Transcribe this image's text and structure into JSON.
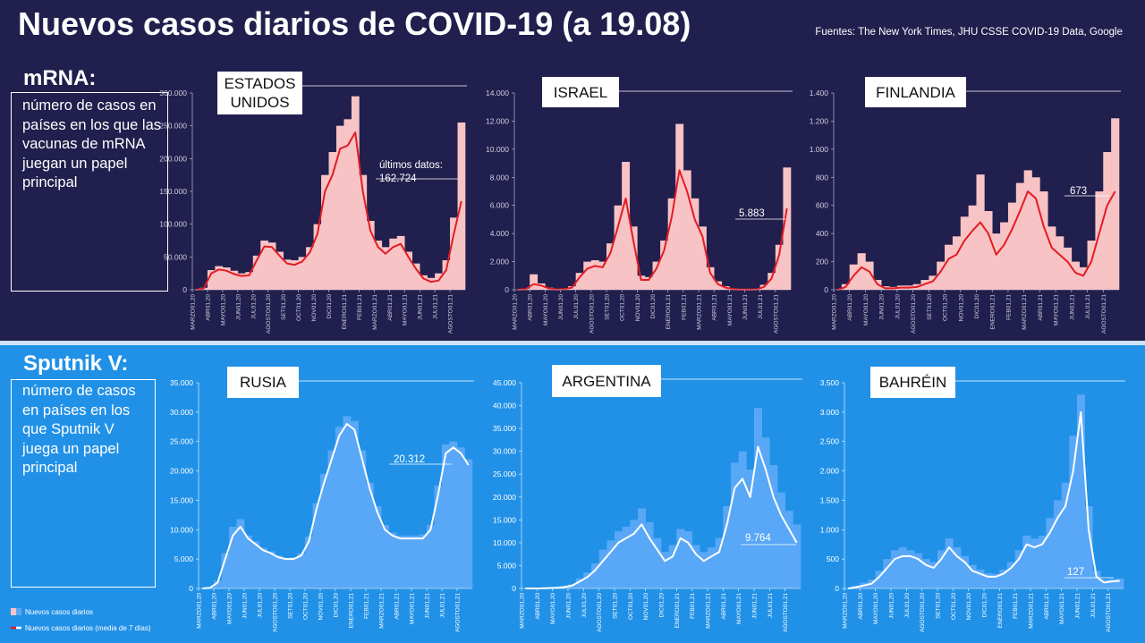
{
  "title": "Nuevos casos diarios de COVID-19 (a 19.08)",
  "source": "Fuentes: The New York Times, JHU CSSE COVID-19 Data, Google",
  "sections": [
    {
      "label": "mRNA:",
      "text": "número de casos en países en los que las vacunas de mRNA juegan un papel principal"
    },
    {
      "label": "Sputnik V:",
      "text": "número de casos en países en los que Sputnik V juega un papel principal"
    }
  ],
  "chart_data": [
    {
      "type": "bar_line",
      "title": "ESTADOS UNIDOS",
      "categories": [
        "MARZO01,20",
        null,
        "ABR01,20",
        null,
        "MAYO01,20",
        null,
        "JUN01,20",
        null,
        "JUL01,20",
        null,
        "AGOSTO01,20",
        null,
        "SET01,20",
        null,
        "OCT01,20",
        null,
        "NOV01,20",
        null,
        "DIC01,20",
        null,
        "ENERO01,21",
        null,
        "FEB01,21",
        null,
        "MARZO01,21",
        null,
        "ABR01,21",
        null,
        "MAYO01,21",
        null,
        "JUN01,21",
        null,
        "JUL01,21",
        null,
        "AGOSTO01,21",
        null
      ],
      "series": [
        {
          "name": "Nuevos casos diarios",
          "color": "#f8c3c5",
          "values": [
            0,
            3000,
            30000,
            36000,
            34000,
            29000,
            25000,
            27000,
            52000,
            75000,
            72000,
            58000,
            46000,
            45000,
            50000,
            65000,
            100000,
            175000,
            210000,
            250000,
            260000,
            295000,
            175000,
            105000,
            75000,
            65000,
            78000,
            82000,
            58000,
            40000,
            22000,
            18000,
            25000,
            45000,
            110000,
            255000
          ]
        },
        {
          "name": "Nuevos casos diarios (media de 7 días)",
          "color": "#e31b23",
          "values": [
            0,
            2000,
            25000,
            31000,
            29000,
            24000,
            21000,
            22000,
            45000,
            66000,
            65000,
            52000,
            40000,
            38000,
            43000,
            57000,
            85000,
            150000,
            175000,
            215000,
            220000,
            240000,
            150000,
            90000,
            65000,
            55000,
            65000,
            70000,
            50000,
            32000,
            17000,
            12000,
            14000,
            30000,
            85000,
            135000
          ]
        }
      ],
      "ylim": [
        0,
        300000
      ],
      "yticks": [
        0,
        {
          "value": 50000,
          "label": "50.000"
        },
        {
          "value": 100000,
          "label": "100.000"
        },
        {
          "value": 150000,
          "label": "150.000"
        },
        {
          "value": 200000,
          "label": "200.000"
        },
        {
          "value": 250000,
          "label": "250.000"
        },
        {
          "value": 300000,
          "label": "300.000"
        }
      ],
      "annotations": [
        "últimos datos:",
        "162.724"
      ]
    },
    {
      "type": "bar_line",
      "title": "ISRAEL",
      "categories": [
        "MARZO01,20",
        null,
        "ABR01,20",
        null,
        "MAYO01,20",
        null,
        "JUN01,20",
        null,
        "JUL01,20",
        null,
        "AGOSTO01,20",
        null,
        "SET01,20",
        null,
        "OCT01,20",
        null,
        "NOV01,20",
        null,
        "DIC01,20",
        null,
        "ENERO01,21",
        null,
        "FEB01,21",
        null,
        "MARZO01,21",
        null,
        "ABR01,21",
        null,
        "MAYO01,21",
        null,
        "JUN01,21",
        null,
        "JUL01,21",
        null,
        "AGOSTO01,21",
        null
      ],
      "series": [
        {
          "color": "#f8c3c5",
          "values": [
            0,
            80,
            1100,
            450,
            150,
            40,
            80,
            250,
            1200,
            2000,
            2100,
            2000,
            3300,
            6000,
            9100,
            4500,
            1000,
            900,
            2000,
            3500,
            6500,
            11800,
            8500,
            6500,
            4500,
            1600,
            600,
            250,
            80,
            40,
            30,
            60,
            350,
            1200,
            3200,
            8700
          ]
        },
        {
          "color": "#e31b23",
          "values": [
            0,
            50,
            400,
            300,
            100,
            20,
            50,
            150,
            900,
            1500,
            1700,
            1600,
            2600,
            4500,
            6500,
            3500,
            700,
            700,
            1500,
            2800,
            5200,
            8500,
            7000,
            5000,
            3800,
            1200,
            400,
            150,
            50,
            20,
            10,
            20,
            200,
            800,
            2500,
            5800
          ]
        }
      ],
      "ylim": [
        0,
        14000
      ],
      "yticks": [
        0,
        {
          "value": 2000,
          "label": "2.000"
        },
        {
          "value": 4000,
          "label": "4.000"
        },
        {
          "value": 6000,
          "label": "6.000"
        },
        {
          "value": 8000,
          "label": "8.000"
        },
        {
          "value": 10000,
          "label": "10.000"
        },
        {
          "value": 12000,
          "label": "12.000"
        },
        {
          "value": 14000,
          "label": "14.000"
        }
      ],
      "annotations": [
        "5.883"
      ]
    },
    {
      "type": "bar_line",
      "title": "FINLANDIA",
      "categories": [
        "MARZO01,20",
        null,
        "ABR01,20",
        null,
        "MAYO01,20",
        null,
        "JUN01,20",
        null,
        "JUL01,20",
        null,
        "AGOSTO01,20",
        null,
        "SET01,20",
        null,
        "OCT01,20",
        null,
        "NOV01,20",
        null,
        "DIC01,20",
        null,
        "ENERO01,21",
        null,
        "FEB01,21",
        null,
        "MARZO01,21",
        null,
        "ABR01,21",
        null,
        "MAYO01,21",
        null,
        "JUN01,21",
        null,
        "JUL01,21",
        null,
        "AGOSTO01,21",
        null
      ],
      "series": [
        {
          "color": "#f8c3c5",
          "values": [
            0,
            40,
            180,
            260,
            200,
            70,
            25,
            20,
            30,
            30,
            40,
            70,
            100,
            200,
            320,
            380,
            520,
            600,
            820,
            560,
            400,
            480,
            620,
            760,
            850,
            800,
            700,
            450,
            380,
            300,
            200,
            160,
            350,
            700,
            980,
            1220
          ]
        },
        {
          "color": "#e31b23",
          "values": [
            0,
            20,
            100,
            160,
            130,
            40,
            10,
            10,
            15,
            15,
            20,
            40,
            60,
            130,
            220,
            250,
            350,
            420,
            480,
            400,
            250,
            320,
            430,
            560,
            700,
            650,
            450,
            300,
            250,
            200,
            120,
            100,
            200,
            400,
            600,
            700
          ]
        }
      ],
      "ylim": [
        0,
        1400
      ],
      "yticks": [
        0,
        200,
        400,
        600,
        800,
        {
          "value": 1000,
          "label": "1.000"
        },
        {
          "value": 1200,
          "label": "1.200"
        },
        {
          "value": 1400,
          "label": "1.400"
        }
      ],
      "annotations": [
        "673"
      ]
    },
    {
      "type": "bar_line",
      "title": "RUSIA",
      "categories": [
        "MARZO01,20",
        null,
        "ABR01,20",
        null,
        "MAYO01,20",
        null,
        "JUN01,20",
        null,
        "JUL01,20",
        null,
        "AGOSTO01,20",
        null,
        "SET01,20",
        null,
        "OCT01,20",
        null,
        "NOV01,20",
        null,
        "DIC01,20",
        null,
        "ENERO01,21",
        null,
        "FEB01,21",
        null,
        "MARZO01,21",
        null,
        "ABR01,21",
        null,
        "MAYO01,21",
        null,
        "JUN01,21",
        null,
        "JUL01,21",
        null,
        "AGOSTO01,21",
        null
      ],
      "series": [
        {
          "color": "#59a7f7",
          "values": [
            0,
            150,
            1300,
            6000,
            10500,
            11800,
            9000,
            8000,
            6900,
            6300,
            5600,
            5200,
            5300,
            6000,
            8800,
            14500,
            19500,
            23500,
            27500,
            29300,
            28500,
            23500,
            18000,
            14000,
            10800,
            9500,
            9000,
            9000,
            9000,
            9200,
            10800,
            17500,
            24500,
            25000,
            24000,
            22000
          ]
        },
        {
          "color": "#ffffff",
          "values": [
            0,
            100,
            1000,
            5000,
            9000,
            10500,
            8500,
            7500,
            6500,
            6000,
            5300,
            5000,
            5000,
            5600,
            8000,
            13500,
            18000,
            22000,
            26000,
            28000,
            27000,
            22000,
            17000,
            13000,
            10000,
            9000,
            8500,
            8500,
            8500,
            8500,
            10000,
            16000,
            23000,
            24000,
            23000,
            21000
          ]
        }
      ],
      "ylim": [
        0,
        35000
      ],
      "yticks": [
        0,
        {
          "value": 5000,
          "label": "5.000"
        },
        {
          "value": 10000,
          "label": "10.000"
        },
        {
          "value": 15000,
          "label": "15.000"
        },
        {
          "value": 20000,
          "label": "20.000"
        },
        {
          "value": 25000,
          "label": "25.000"
        },
        {
          "value": 30000,
          "label": "30.000"
        },
        {
          "value": 35000,
          "label": "35.000"
        }
      ],
      "annotations": [
        "20.312"
      ]
    },
    {
      "type": "bar_line",
      "title": "ARGENTINA",
      "categories": [
        "MARZO01,20",
        null,
        "ABR01,20",
        null,
        "MAYO01,20",
        null,
        "JUN01,20",
        null,
        "JUL01,20",
        null,
        "AGOSTO01,20",
        null,
        "SET01,20",
        null,
        "OCT01,20",
        null,
        "NOV01,20",
        null,
        "DIC01,20",
        null,
        "ENERO01,21",
        null,
        "FEB01,21",
        null,
        "MARZO01,21",
        null,
        "ABR01,21",
        null,
        "MAYO01,21",
        null,
        "JUN01,21",
        null,
        "JUL01,21",
        null,
        "AGOSTO01,21",
        null
      ],
      "series": [
        {
          "color": "#59a7f7",
          "values": [
            0,
            10,
            50,
            120,
            250,
            500,
            900,
            2200,
            3500,
            5500,
            8500,
            10500,
            12500,
            13500,
            15000,
            17500,
            14500,
            11000,
            8000,
            9500,
            13000,
            12500,
            9500,
            8000,
            9000,
            11000,
            18000,
            27500,
            30000,
            26000,
            39500,
            33000,
            27000,
            21000,
            17000,
            14000
          ]
        },
        {
          "color": "#ffffff",
          "values": [
            0,
            0,
            20,
            80,
            150,
            300,
            600,
            1500,
            2500,
            4000,
            6000,
            8000,
            10000,
            11000,
            12000,
            14000,
            11000,
            8500,
            6000,
            7000,
            11000,
            10000,
            7500,
            6000,
            7000,
            8000,
            14000,
            22000,
            24000,
            20000,
            31000,
            26000,
            20000,
            16000,
            13000,
            10000
          ]
        }
      ],
      "ylim": [
        0,
        45000
      ],
      "yticks": [
        0,
        {
          "value": 5000,
          "label": "5.000"
        },
        {
          "value": 10000,
          "label": "10.000"
        },
        {
          "value": 15000,
          "label": "15.000"
        },
        {
          "value": 20000,
          "label": "20.000"
        },
        {
          "value": 25000,
          "label": "25.000"
        },
        {
          "value": 30000,
          "label": "30.000"
        },
        {
          "value": 35000,
          "label": "35.000"
        },
        {
          "value": 40000,
          "label": "40.000"
        },
        {
          "value": 45000,
          "label": "45.000"
        }
      ],
      "annotations": [
        "9.764"
      ]
    },
    {
      "type": "bar_line",
      "title": "BAHRÉIN",
      "categories": [
        "MARZO01,20",
        null,
        "ABR01,20",
        null,
        "MAYO01,20",
        null,
        "JUN01,20",
        null,
        "JUL01,20",
        null,
        "AGOSTO01,20",
        null,
        "SET01,20",
        null,
        "OCT01,20",
        null,
        "NOV01,20",
        null,
        "DIC01,20",
        null,
        "ENERO01,21",
        null,
        "FEB01,21",
        null,
        "MARZO01,21",
        null,
        "ABR01,21",
        null,
        "MAYO01,21",
        null,
        "JUN01,21",
        null,
        "JUL01,21",
        null,
        "AGOSTO01,21",
        null
      ],
      "series": [
        {
          "color": "#59a7f7",
          "values": [
            0,
            50,
            100,
            150,
            300,
            500,
            650,
            700,
            650,
            600,
            500,
            450,
            650,
            850,
            700,
            550,
            400,
            320,
            260,
            250,
            320,
            450,
            650,
            900,
            850,
            900,
            1200,
            1500,
            1800,
            2600,
            3300,
            1400,
            300,
            150,
            160,
            170
          ]
        },
        {
          "color": "#ffffff",
          "values": [
            0,
            20,
            50,
            80,
            200,
            350,
            500,
            550,
            550,
            500,
            400,
            350,
            500,
            700,
            550,
            450,
            300,
            250,
            200,
            200,
            250,
            350,
            500,
            750,
            700,
            750,
            950,
            1200,
            1400,
            2000,
            3000,
            1000,
            200,
            100,
            120,
            130
          ]
        }
      ],
      "ylim": [
        0,
        3500
      ],
      "yticks": [
        0,
        500,
        {
          "value": 1000,
          "label": "1.000"
        },
        {
          "value": 1500,
          "label": "1.500"
        },
        {
          "value": 2000,
          "label": "2.000"
        },
        {
          "value": 2500,
          "label": "2.500"
        },
        {
          "value": 3000,
          "label": "3.000"
        },
        {
          "value": 3500,
          "label": "3.500"
        }
      ],
      "annotations": [
        "127"
      ]
    }
  ]
}
